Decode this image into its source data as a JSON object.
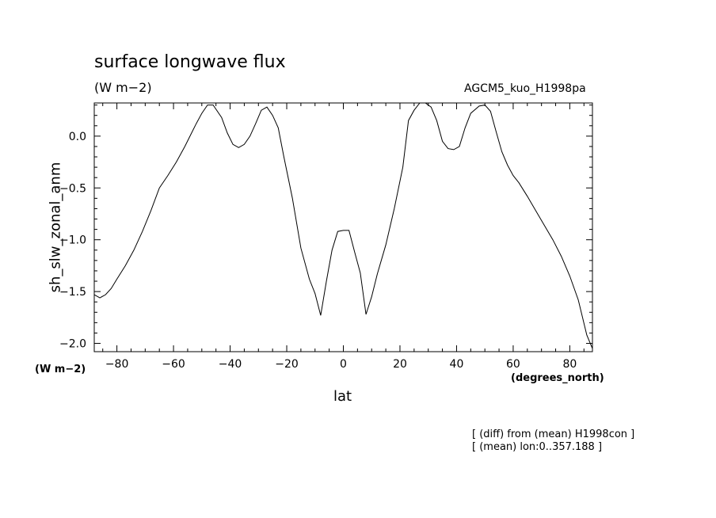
{
  "chart_data": {
    "type": "line",
    "title": "surface longwave flux",
    "units_line": "(W m−2)",
    "run_label": "AGCM5_kuo_H1998pa",
    "xlabel": "lat",
    "xunit": "(degrees_north)",
    "ylabel": "sh_slw_zonal_anm",
    "yunit": "(W m−2)",
    "xlim": [
      -88,
      88
    ],
    "ylim": [
      -2.08,
      0.32
    ],
    "xticks": [
      -80,
      -60,
      -40,
      -20,
      0,
      20,
      40,
      60,
      80
    ],
    "xtick_labels": [
      "−80",
      "−60",
      "−40",
      "−20",
      "0",
      "20",
      "40",
      "60",
      "80"
    ],
    "yticks": [
      0.0,
      -0.5,
      -1.0,
      -1.5,
      -2.0
    ],
    "ytick_labels": [
      "0.0",
      "−0.5",
      "−1.0",
      "−1.5",
      "−2.0"
    ],
    "grid": false,
    "series": [
      {
        "x": [
          -88,
          -86,
          -84,
          -82,
          -80,
          -77,
          -74,
          -71,
          -68,
          -65,
          -62,
          -59,
          -56,
          -54,
          -52,
          -50,
          -48,
          -46,
          -43,
          -41,
          -39,
          -37,
          -35,
          -33,
          -31,
          -29,
          -27,
          -25,
          -23,
          -21,
          -18,
          -15,
          -12,
          -10,
          -8,
          -6,
          -4,
          -2,
          0,
          2,
          4,
          6,
          8,
          10,
          12,
          15,
          18,
          21,
          23,
          25,
          27,
          29,
          31,
          33,
          35,
          37,
          39,
          41,
          43,
          45,
          48,
          50,
          52,
          54,
          56,
          58,
          60,
          62,
          65,
          68,
          71,
          74,
          77,
          80,
          83,
          86,
          88
        ],
        "y": [
          -1.53,
          -1.56,
          -1.53,
          -1.47,
          -1.38,
          -1.25,
          -1.1,
          -0.92,
          -0.72,
          -0.5,
          -0.38,
          -0.25,
          -0.1,
          0.01,
          0.12,
          0.22,
          0.3,
          0.3,
          0.18,
          0.03,
          -0.08,
          -0.11,
          -0.08,
          0.0,
          0.12,
          0.25,
          0.28,
          0.2,
          0.08,
          -0.2,
          -0.6,
          -1.08,
          -1.38,
          -1.52,
          -1.73,
          -1.4,
          -1.1,
          -0.92,
          -0.91,
          -0.91,
          -1.12,
          -1.32,
          -1.72,
          -1.55,
          -1.33,
          -1.05,
          -0.7,
          -0.3,
          0.15,
          0.25,
          0.32,
          0.32,
          0.28,
          0.15,
          -0.05,
          -0.12,
          -0.13,
          -0.1,
          0.08,
          0.22,
          0.29,
          0.3,
          0.24,
          0.04,
          -0.15,
          -0.28,
          -0.38,
          -0.45,
          -0.58,
          -0.72,
          -0.86,
          -1.0,
          -1.16,
          -1.35,
          -1.58,
          -1.92,
          -2.05
        ]
      }
    ]
  },
  "notes": [
    "[ (diff) from (mean) H1998con ]",
    "[ (mean) lon:0..357.188 ]"
  ]
}
